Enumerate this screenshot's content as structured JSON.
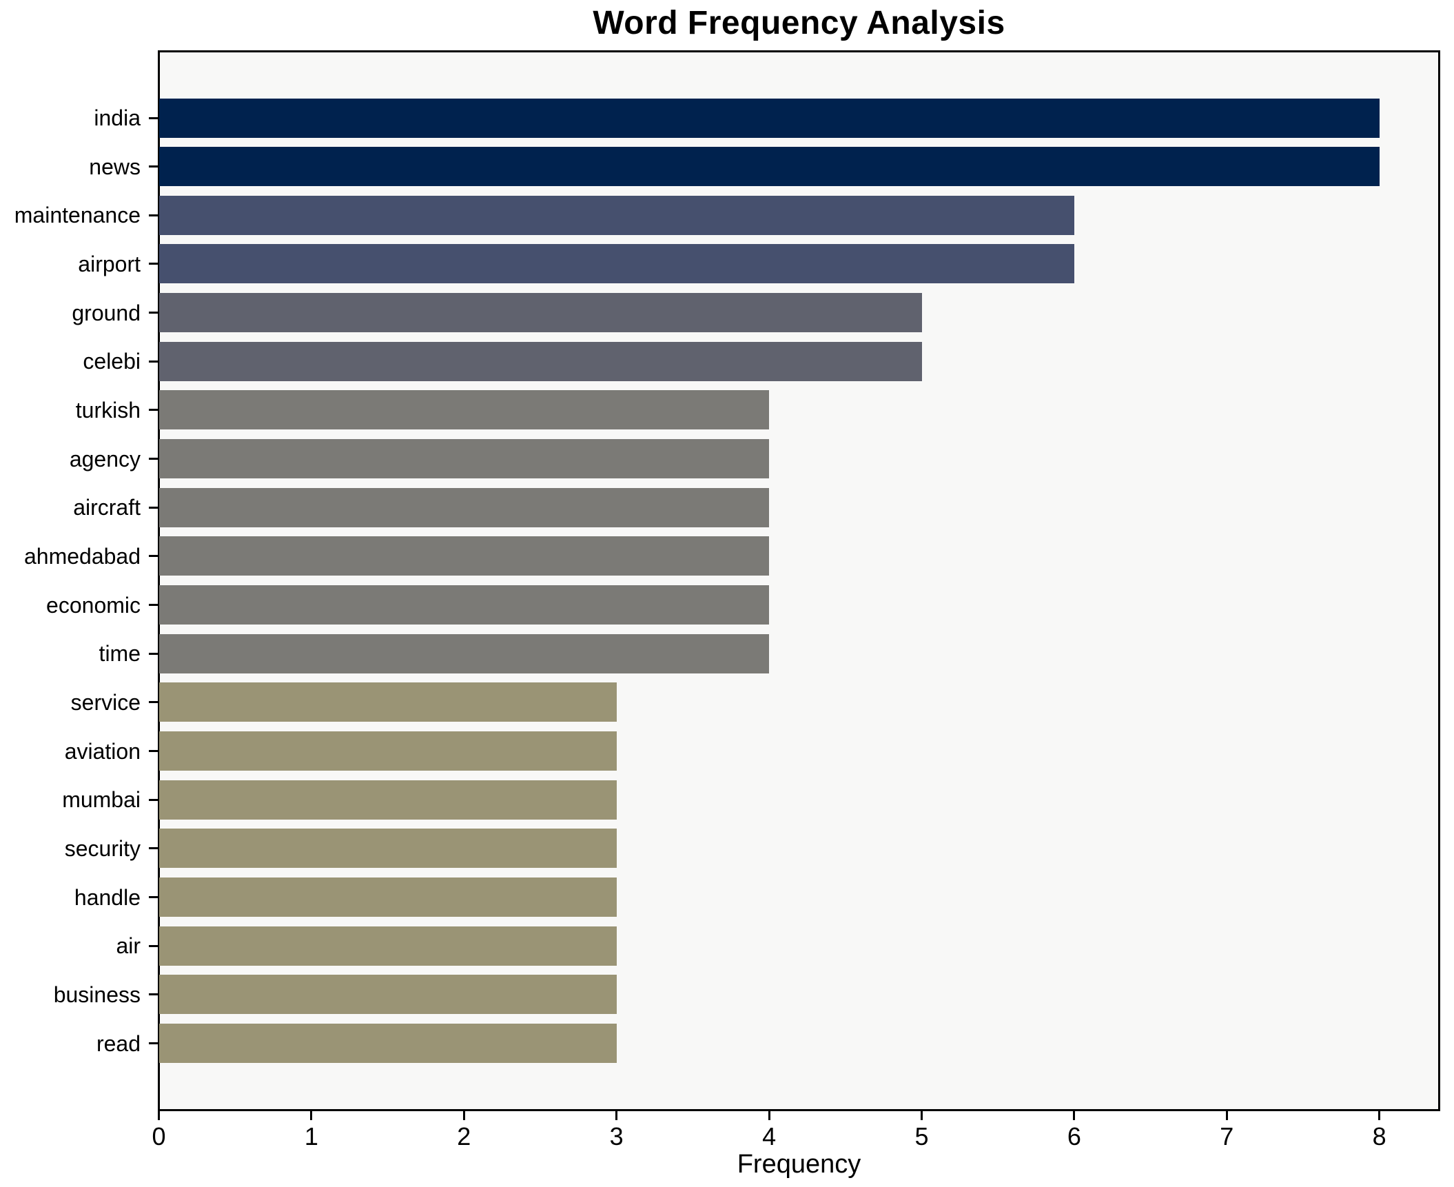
{
  "chart_data": {
    "type": "bar",
    "orientation": "horizontal",
    "title": "Word Frequency Analysis",
    "xlabel": "Frequency",
    "ylabel": "",
    "categories": [
      "india",
      "news",
      "maintenance",
      "airport",
      "ground",
      "celebi",
      "turkish",
      "agency",
      "aircraft",
      "ahmedabad",
      "economic",
      "time",
      "service",
      "aviation",
      "mumbai",
      "security",
      "handle",
      "air",
      "business",
      "read"
    ],
    "values": [
      8,
      8,
      6,
      6,
      5,
      5,
      4,
      4,
      4,
      4,
      4,
      4,
      3,
      3,
      3,
      3,
      3,
      3,
      3,
      3
    ],
    "bar_colors": [
      "#00224e",
      "#00224e",
      "#46506e",
      "#46506e",
      "#60626e",
      "#60626e",
      "#7b7a76",
      "#7b7a76",
      "#7b7a76",
      "#7b7a76",
      "#7b7a76",
      "#7b7a76",
      "#9a9475",
      "#9a9475",
      "#9a9475",
      "#9a9475",
      "#9a9475",
      "#9a9475",
      "#9a9475",
      "#9a9475"
    ],
    "xticks": [
      "0",
      "1",
      "2",
      "3",
      "4",
      "5",
      "6",
      "7",
      "8"
    ],
    "xlim": [
      0,
      8.4
    ],
    "grid": false,
    "legend": null,
    "plot_background": "#f8f8f7",
    "figure_background": "#ffffff",
    "spine_color": "#000000"
  }
}
